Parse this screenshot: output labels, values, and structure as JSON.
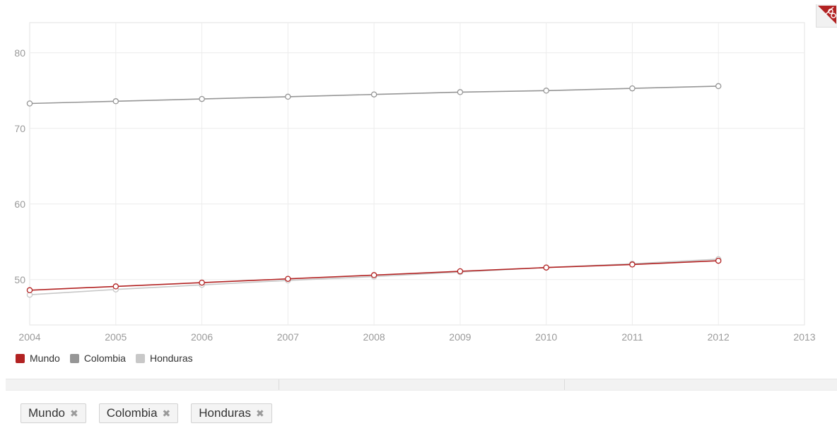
{
  "chart_data": {
    "type": "line",
    "x": [
      2004,
      2005,
      2006,
      2007,
      2008,
      2009,
      2010,
      2011,
      2012
    ],
    "series": [
      {
        "name": "Mundo",
        "values": [
          48.6,
          49.1,
          49.6,
          50.1,
          50.6,
          51.1,
          51.6,
          52.0,
          52.5
        ]
      },
      {
        "name": "Colombia",
        "values": [
          73.3,
          73.6,
          73.9,
          74.2,
          74.5,
          74.8,
          75.0,
          75.3,
          75.6
        ]
      },
      {
        "name": "Honduras",
        "values": [
          48.0,
          48.7,
          49.3,
          49.9,
          50.4,
          51.0,
          51.6,
          52.1,
          52.7
        ]
      }
    ],
    "xlim": [
      2004,
      2013
    ],
    "ylim": [
      44,
      84
    ],
    "y_ticks": [
      50,
      60,
      70,
      80
    ],
    "x_ticks": [
      "2004",
      "2005",
      "2006",
      "2007",
      "2008",
      "2009",
      "2010",
      "2011",
      "2012",
      "2013"
    ],
    "y_tick_labels": [
      "50",
      "60",
      "70",
      "80"
    ],
    "grid": true,
    "legend_position": "bottom-left",
    "colors": {
      "Mundo": "#b22222",
      "Colombia": "#969696",
      "Honduras": "#c8c8c8"
    }
  },
  "legend": {
    "items": [
      {
        "label": "Mundo",
        "color": "#b22222"
      },
      {
        "label": "Colombia",
        "color": "#969696"
      },
      {
        "label": "Honduras",
        "color": "#c8c8c8"
      }
    ]
  },
  "chips": [
    {
      "label": "Mundo",
      "remove_icon": "✖"
    },
    {
      "label": "Colombia",
      "remove_icon": "✖"
    },
    {
      "label": "Honduras",
      "remove_icon": "✖"
    }
  ],
  "corner_icon": "scissors-icon"
}
